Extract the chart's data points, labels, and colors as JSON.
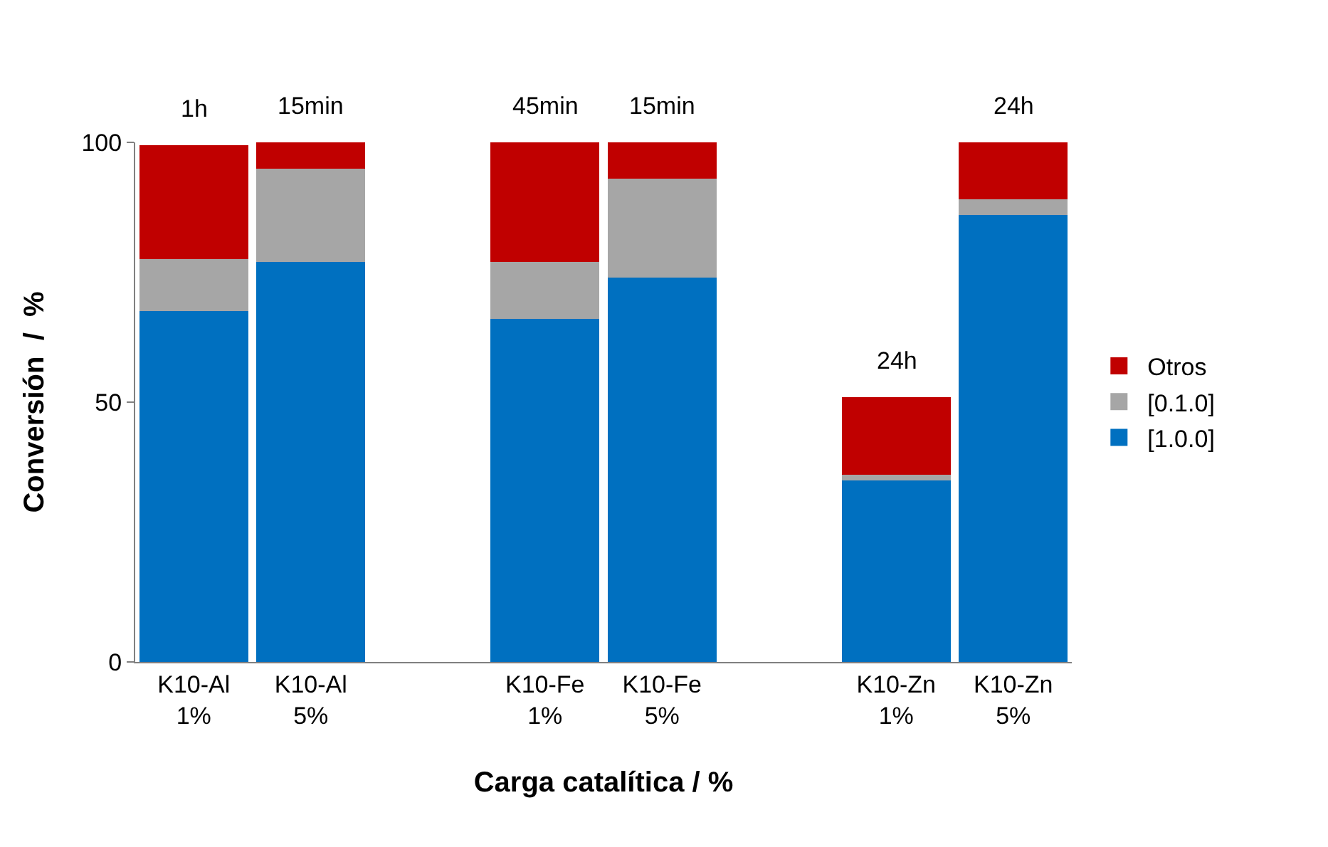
{
  "chart_data": {
    "type": "bar",
    "stacked": true,
    "xlabel": "Carga catalítica / %",
    "ylabel": "Conversión  /  %",
    "categories": [
      "K10-Al\n1%",
      "K10-Al\n5%",
      null,
      "K10-Fe\n1%",
      "K10-Fe\n5%",
      null,
      "K10-Zn\n1%",
      "K10-Zn\n5%"
    ],
    "series": [
      {
        "name": "[1.0.0]",
        "color": "#0070c0",
        "values": [
          67.5,
          77,
          null,
          66,
          74,
          null,
          35,
          86
        ]
      },
      {
        "name": "[0.1.0]",
        "color": "#a6a6a6",
        "values": [
          10,
          18,
          null,
          11,
          19,
          null,
          1,
          3
        ]
      },
      {
        "name": "Otros",
        "color": "#c00000",
        "values": [
          22,
          5,
          null,
          23,
          7,
          null,
          15,
          11
        ]
      }
    ],
    "annotations": [
      {
        "text": "1h",
        "x": "K10-Al\n1%",
        "y": 99.5
      },
      {
        "text": "15min",
        "x": "K10-Al\n5%",
        "y": 100
      },
      {
        "text": "45min",
        "x": "K10-Fe\n1%",
        "y": 100
      },
      {
        "text": "15min",
        "x": "K10-Fe\n5%",
        "y": 100
      },
      {
        "text": "24h",
        "x": "K10-Zn\n1%",
        "y": 51
      },
      {
        "text": "24h",
        "x": "K10-Zn\n5%",
        "y": 100
      }
    ],
    "ylim": [
      0,
      100
    ],
    "yticks": [
      0,
      50,
      100
    ],
    "legend": "right"
  }
}
